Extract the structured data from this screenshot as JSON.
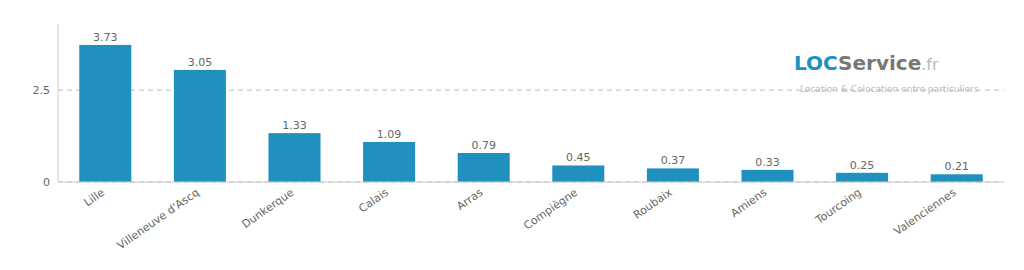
{
  "chart_data": {
    "type": "bar",
    "categories": [
      "Lille",
      "Villeneuve d'Ascq",
      "Dunkerque",
      "Calais",
      "Arras",
      "Compiègne",
      "Roubaix",
      "Amiens",
      "Tourcoing",
      "Valenciennes"
    ],
    "values": [
      3.73,
      3.05,
      1.33,
      1.09,
      0.79,
      0.45,
      0.37,
      0.33,
      0.25,
      0.21
    ],
    "color": "#2090BE",
    "ylim": [
      0,
      4.3
    ],
    "yticks": [
      0,
      2.5
    ],
    "grid": true,
    "data_labels": true,
    "annotations": [
      {
        "text": "LOC",
        "color": "#2090BE"
      },
      {
        "text": "Service",
        "color": "#777777"
      },
      {
        "text": ".fr",
        "color": "#bbbbbb"
      },
      {
        "text": "Location & Colocation entre particuliers",
        "color": "#bbbbbb"
      }
    ]
  }
}
